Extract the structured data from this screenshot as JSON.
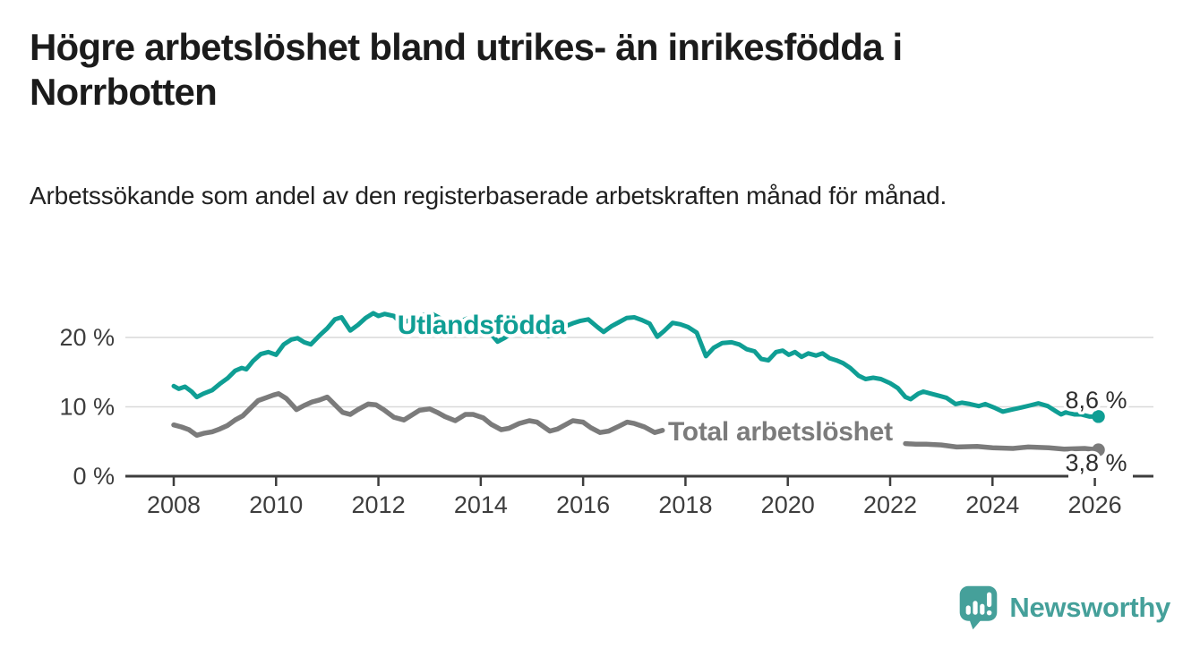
{
  "header": {
    "title": "Högre arbetslöshet bland utrikes- än inrikesfödda i Norrbotten",
    "subtitle": "Arbetssökande som andel av den registerbaserade arbetskraften månad för månad."
  },
  "footer": {
    "brand": "Newsworthy",
    "brand_color": "#45a09a",
    "logo_icon": "speech-bubble-bar-chart-icon"
  },
  "colors": {
    "series_foreign_born": "#0f9e94",
    "series_total": "#7b7b7b",
    "axis": "#3d3d3d",
    "gridline": "#d9d9d9",
    "value_label": "#2e2e2e",
    "background": "#ffffff"
  },
  "chart_data": {
    "type": "line",
    "title": "",
    "xlabel": "",
    "ylabel": "",
    "grid": "horizontal-only",
    "x_axis": {
      "range_years": [
        2007.05,
        2027.15
      ],
      "ticks": [
        2008,
        2010,
        2012,
        2014,
        2016,
        2018,
        2020,
        2022,
        2024,
        2026
      ],
      "tick_labels": [
        "2008",
        "2010",
        "2012",
        "2014",
        "2016",
        "2018",
        "2020",
        "2022",
        "2024",
        "2026"
      ]
    },
    "y_axis": {
      "range_pct": [
        0,
        25
      ],
      "ticks": [
        0,
        10,
        20
      ],
      "tick_labels": [
        "0 %",
        "10 %",
        "20 %"
      ]
    },
    "series": [
      {
        "id": "utlandsfodda",
        "name": "Utlandsfödda",
        "color": "#0f9e94",
        "stroke_width": 5,
        "end_dot": true,
        "end_value": 8.6,
        "name_label": {
          "text": "Utlandsfödda",
          "year": 2012.37,
          "pct_baseline": 20.52,
          "anchor": "start",
          "font_size": 30,
          "bold": true
        },
        "end_label": {
          "text": "8,6 %",
          "year": 2026.63,
          "pct_baseline": 9.81,
          "anchor": "end",
          "font_size": 27
        },
        "segments": [
          [
            [
              2008.0,
              13.0
            ],
            [
              2008.1,
              12.6
            ],
            [
              2008.22,
              12.9
            ],
            [
              2008.35,
              12.2
            ],
            [
              2008.45,
              11.4
            ],
            [
              2008.58,
              11.9
            ],
            [
              2008.75,
              12.4
            ],
            [
              2008.9,
              13.3
            ],
            [
              2009.05,
              14.1
            ],
            [
              2009.2,
              15.2
            ],
            [
              2009.33,
              15.6
            ],
            [
              2009.42,
              15.4
            ],
            [
              2009.55,
              16.6
            ],
            [
              2009.7,
              17.6
            ],
            [
              2009.85,
              17.9
            ],
            [
              2010.0,
              17.5
            ],
            [
              2010.15,
              19.0
            ],
            [
              2010.3,
              19.7
            ],
            [
              2010.42,
              19.9
            ],
            [
              2010.55,
              19.3
            ],
            [
              2010.68,
              19.0
            ],
            [
              2010.85,
              20.3
            ],
            [
              2011.0,
              21.3
            ],
            [
              2011.15,
              22.6
            ],
            [
              2011.28,
              22.9
            ],
            [
              2011.45,
              21.0
            ],
            [
              2011.6,
              21.8
            ],
            [
              2011.75,
              22.8
            ],
            [
              2011.9,
              23.5
            ],
            [
              2012.0,
              23.1
            ],
            [
              2012.12,
              23.4
            ],
            [
              2012.3,
              23.1
            ],
            [
              2012.45,
              22.0
            ],
            [
              2012.6,
              22.5
            ],
            [
              2012.75,
              23.0
            ],
            [
              2012.9,
              23.3
            ],
            [
              2013.05,
              23.4
            ],
            [
              2013.2,
              22.8
            ],
            [
              2013.4,
              21.5
            ],
            [
              2013.55,
              22.1
            ],
            [
              2013.72,
              22.7
            ],
            [
              2013.9,
              22.5
            ],
            [
              2014.05,
              22.2
            ],
            [
              2014.2,
              20.5
            ],
            [
              2014.33,
              19.4
            ],
            [
              2014.48,
              20.0
            ],
            [
              2014.65,
              20.9
            ],
            [
              2014.85,
              21.5
            ],
            [
              2015.0,
              21.8
            ],
            [
              2015.15,
              21.1
            ],
            [
              2015.32,
              20.2
            ],
            [
              2015.48,
              20.8
            ],
            [
              2015.65,
              21.6
            ],
            [
              2015.82,
              22.1
            ],
            [
              2015.95,
              22.4
            ],
            [
              2016.1,
              22.6
            ],
            [
              2016.28,
              21.5
            ],
            [
              2016.4,
              20.8
            ],
            [
              2016.55,
              21.6
            ],
            [
              2016.7,
              22.2
            ],
            [
              2016.85,
              22.8
            ],
            [
              2017.0,
              22.9
            ],
            [
              2017.15,
              22.5
            ],
            [
              2017.3,
              22.0
            ],
            [
              2017.45,
              20.1
            ],
            [
              2017.58,
              20.9
            ],
            [
              2017.75,
              22.1
            ],
            [
              2017.9,
              21.9
            ],
            [
              2018.05,
              21.5
            ],
            [
              2018.22,
              20.7
            ],
            [
              2018.4,
              17.3
            ],
            [
              2018.55,
              18.5
            ],
            [
              2018.72,
              19.2
            ],
            [
              2018.9,
              19.3
            ],
            [
              2019.05,
              19.0
            ],
            [
              2019.2,
              18.3
            ],
            [
              2019.35,
              18.0
            ],
            [
              2019.48,
              16.9
            ],
            [
              2019.62,
              16.7
            ],
            [
              2019.77,
              17.9
            ],
            [
              2019.9,
              18.1
            ],
            [
              2020.02,
              17.5
            ],
            [
              2020.14,
              17.9
            ],
            [
              2020.27,
              17.2
            ],
            [
              2020.4,
              17.7
            ],
            [
              2020.55,
              17.4
            ],
            [
              2020.68,
              17.7
            ],
            [
              2020.82,
              17.0
            ],
            [
              2020.95,
              16.7
            ],
            [
              2021.08,
              16.3
            ],
            [
              2021.22,
              15.6
            ],
            [
              2021.38,
              14.5
            ],
            [
              2021.52,
              14.0
            ],
            [
              2021.67,
              14.2
            ],
            [
              2021.82,
              14.0
            ],
            [
              2022.0,
              13.4
            ],
            [
              2022.15,
              12.7
            ],
            [
              2022.3,
              11.4
            ],
            [
              2022.4,
              11.1
            ],
            [
              2022.55,
              11.9
            ],
            [
              2022.65,
              12.2
            ],
            [
              2022.8,
              11.9
            ],
            [
              2022.95,
              11.6
            ],
            [
              2023.1,
              11.3
            ],
            [
              2023.28,
              10.4
            ],
            [
              2023.4,
              10.6
            ],
            [
              2023.56,
              10.4
            ],
            [
              2023.73,
              10.1
            ],
            [
              2023.86,
              10.4
            ],
            [
              2024.03,
              9.9
            ],
            [
              2024.2,
              9.3
            ],
            [
              2024.38,
              9.6
            ],
            [
              2024.56,
              9.9
            ],
            [
              2024.73,
              10.2
            ],
            [
              2024.9,
              10.5
            ],
            [
              2025.08,
              10.1
            ],
            [
              2025.25,
              9.3
            ],
            [
              2025.34,
              8.9
            ],
            [
              2025.43,
              9.2
            ],
            [
              2025.6,
              8.9
            ],
            [
              2025.73,
              8.9
            ],
            [
              2025.9,
              8.6
            ],
            [
              2026.07,
              8.6
            ]
          ]
        ]
      },
      {
        "id": "total",
        "name": "Total arbetslöshet",
        "color": "#7b7b7b",
        "stroke_width": 5.5,
        "end_dot": true,
        "end_value": 3.8,
        "name_label": {
          "text": "Total arbetslöshet",
          "year": 2017.66,
          "pct_baseline": 5.16,
          "anchor": "start",
          "font_size": 30,
          "bold": true
        },
        "end_label": {
          "text": "3,8 %",
          "year": 2026.63,
          "pct_baseline": 0.77,
          "anchor": "end",
          "font_size": 27,
          "white_backing": true
        },
        "segments": [
          [
            [
              2008.0,
              7.4
            ],
            [
              2008.15,
              7.1
            ],
            [
              2008.3,
              6.7
            ],
            [
              2008.45,
              5.9
            ],
            [
              2008.6,
              6.2
            ],
            [
              2008.75,
              6.4
            ],
            [
              2008.9,
              6.8
            ],
            [
              2009.05,
              7.3
            ],
            [
              2009.2,
              8.1
            ],
            [
              2009.35,
              8.7
            ],
            [
              2009.5,
              9.8
            ],
            [
              2009.65,
              10.9
            ],
            [
              2009.8,
              11.3
            ],
            [
              2009.95,
              11.7
            ],
            [
              2010.05,
              11.9
            ],
            [
              2010.2,
              11.2
            ],
            [
              2010.4,
              9.6
            ],
            [
              2010.55,
              10.2
            ],
            [
              2010.7,
              10.7
            ],
            [
              2010.85,
              11.0
            ],
            [
              2011.0,
              11.4
            ],
            [
              2011.15,
              10.3
            ],
            [
              2011.3,
              9.2
            ],
            [
              2011.45,
              8.9
            ],
            [
              2011.6,
              9.6
            ],
            [
              2011.8,
              10.4
            ],
            [
              2011.95,
              10.3
            ],
            [
              2012.1,
              9.6
            ],
            [
              2012.3,
              8.5
            ],
            [
              2012.5,
              8.1
            ],
            [
              2012.65,
              8.8
            ],
            [
              2012.8,
              9.5
            ],
            [
              2013.0,
              9.7
            ],
            [
              2013.15,
              9.2
            ],
            [
              2013.3,
              8.6
            ],
            [
              2013.5,
              8.0
            ],
            [
              2013.7,
              8.9
            ],
            [
              2013.85,
              8.9
            ],
            [
              2014.05,
              8.4
            ],
            [
              2014.2,
              7.5
            ],
            [
              2014.4,
              6.7
            ],
            [
              2014.55,
              6.9
            ],
            [
              2014.75,
              7.6
            ],
            [
              2014.95,
              8.0
            ],
            [
              2015.1,
              7.8
            ],
            [
              2015.35,
              6.5
            ],
            [
              2015.5,
              6.8
            ],
            [
              2015.8,
              8.0
            ],
            [
              2016.0,
              7.8
            ],
            [
              2016.15,
              7.0
            ],
            [
              2016.33,
              6.3
            ],
            [
              2016.5,
              6.5
            ],
            [
              2016.7,
              7.2
            ],
            [
              2016.86,
              7.8
            ],
            [
              2017.0,
              7.6
            ],
            [
              2017.2,
              7.1
            ],
            [
              2017.4,
              6.3
            ],
            [
              2017.55,
              6.6
            ]
          ],
          [
            [
              2022.3,
              4.7
            ],
            [
              2022.5,
              4.6
            ],
            [
              2022.7,
              4.6
            ],
            [
              2023.0,
              4.5
            ],
            [
              2023.3,
              4.2
            ],
            [
              2023.7,
              4.3
            ],
            [
              2024.0,
              4.1
            ],
            [
              2024.4,
              4.0
            ],
            [
              2024.7,
              4.2
            ],
            [
              2025.1,
              4.1
            ],
            [
              2025.4,
              3.9
            ],
            [
              2025.8,
              4.0
            ],
            [
              2026.07,
              3.8
            ]
          ]
        ]
      }
    ]
  }
}
